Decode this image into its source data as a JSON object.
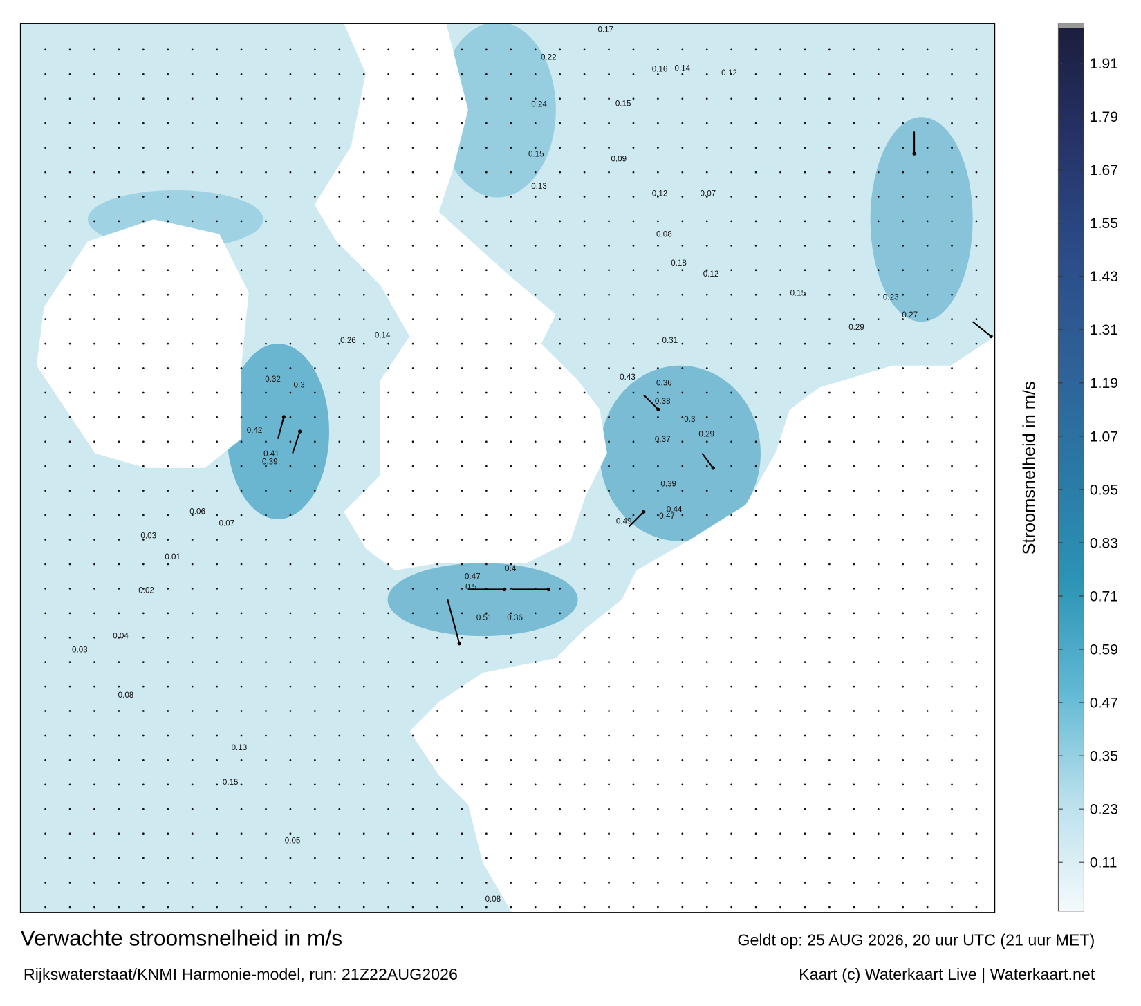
{
  "title": "Verwachte stroomsnelheid in m/s",
  "subtitle": "Rijkswaterstaat/KNMI Harmonie-model, run: 21Z22AUG2026",
  "valid_time": "Geldt op: 25 AUG 2026, 20 uur UTC (21 uur MET)",
  "credit": "Kaart (c) Waterkaart Live | Waterkaart.net",
  "colorbar": {
    "label": "Stroomsnelheid in m/s",
    "lim": [
      0,
      2
    ],
    "ticks": [
      0.11,
      0.23,
      0.35,
      0.47,
      0.59,
      0.71,
      0.83,
      0.95,
      1.07,
      1.19,
      1.31,
      1.43,
      1.55,
      1.67,
      1.79,
      1.91
    ],
    "colors": [
      "#f4fafc",
      "#b9e0ec",
      "#5fb8d3",
      "#2b93b4",
      "#2a78a4",
      "#2f5f97",
      "#2b4a86",
      "#253266",
      "#1b1d3a"
    ]
  },
  "map_labels": [
    0.17,
    0.22,
    0.16,
    0.14,
    0.12,
    0.24,
    0.15,
    0.13,
    0.15,
    0.09,
    0.12,
    0.07,
    0.08,
    0.18,
    0.12,
    0.15,
    0.23,
    0.27,
    0.29,
    0.31,
    0.43,
    0.36,
    0.38,
    0.3,
    0.29,
    0.37,
    0.39,
    0.44,
    0.47,
    0.49,
    0.5,
    0.4,
    0.47,
    0.51,
    0.36,
    0.41,
    0.39,
    0.42,
    0.32,
    0.3,
    0.26,
    0.14,
    0.06,
    0.07,
    0.03,
    0.01,
    0.02,
    0.03,
    0.04,
    0.08,
    0.13,
    0.15,
    0.05,
    0.08
  ]
}
